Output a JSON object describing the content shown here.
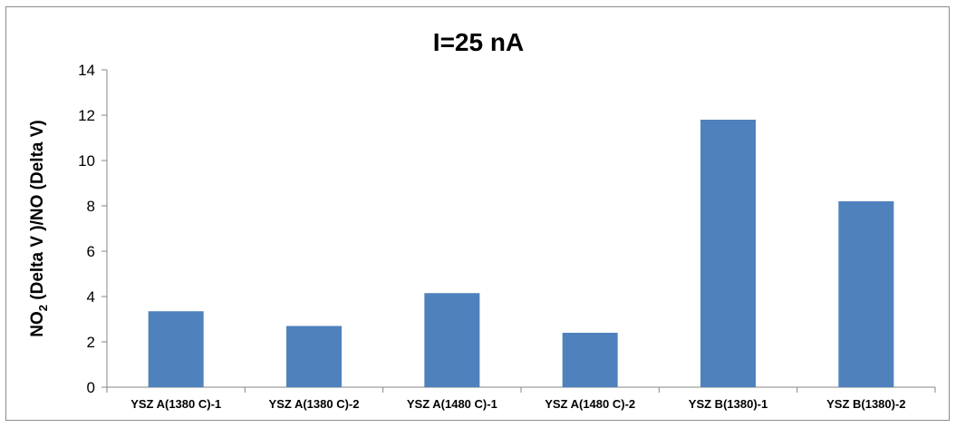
{
  "chart_data": {
    "type": "bar",
    "title": "I=25 nA",
    "ylabel": "NO2 (Delta V )/NO (Delta V)",
    "ylabel_parts": {
      "main": "NO",
      "subscript": "2",
      "rest": " (Delta V )/NO (Delta V)"
    },
    "xlabel": "",
    "categories": [
      "YSZ A(1380 C)-1",
      "YSZ A(1380 C)-2",
      "YSZ A(1480 C)-1",
      "YSZ A(1480 C)-2",
      "YSZ B(1380)-1",
      "YSZ B(1380)-2"
    ],
    "values": [
      3.35,
      2.7,
      4.15,
      2.4,
      11.8,
      8.2
    ],
    "ylim": [
      0,
      14
    ],
    "yticks": [
      0,
      2,
      4,
      6,
      8,
      10,
      12,
      14
    ],
    "grid": false,
    "legend": "none",
    "bar_color": "#4f81bd"
  }
}
